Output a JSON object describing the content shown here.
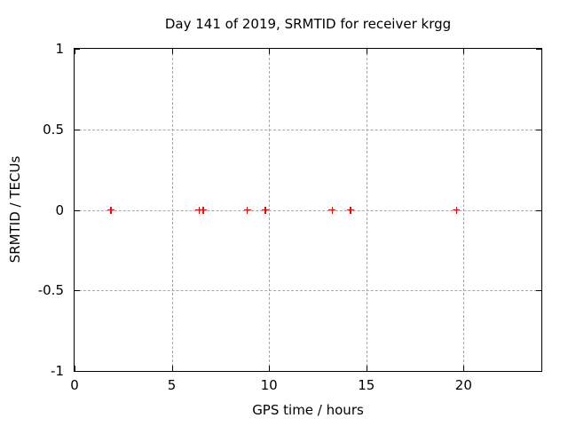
{
  "chart_data": {
    "type": "scatter",
    "title": "Day 141 of 2019, SRMTID for receiver krgg",
    "xlabel": "GPS time / hours",
    "ylabel": "SRMTID / TECUs",
    "xlim": [
      0,
      24
    ],
    "ylim": [
      -1,
      1
    ],
    "xticks": [
      0,
      5,
      10,
      15,
      20
    ],
    "yticks": [
      -1,
      -0.5,
      0,
      0.5,
      1
    ],
    "grid": true,
    "legend": false,
    "series": [
      {
        "name": "SRMTID",
        "marker": "plus",
        "color": "#ff0000",
        "points": [
          {
            "x": 1.88,
            "y": 0
          },
          {
            "x": 6.4,
            "y": 0
          },
          {
            "x": 6.62,
            "y": 0
          },
          {
            "x": 8.88,
            "y": 0
          },
          {
            "x": 9.81,
            "y": 0
          },
          {
            "x": 13.25,
            "y": 0
          },
          {
            "x": 14.2,
            "y": 0
          },
          {
            "x": 19.64,
            "y": 0
          }
        ]
      }
    ],
    "colors": {
      "background": "#ffffff",
      "text": "#000000",
      "axis": "#000000",
      "grid": "#a8a8a8",
      "marker": "#ff0000"
    }
  }
}
